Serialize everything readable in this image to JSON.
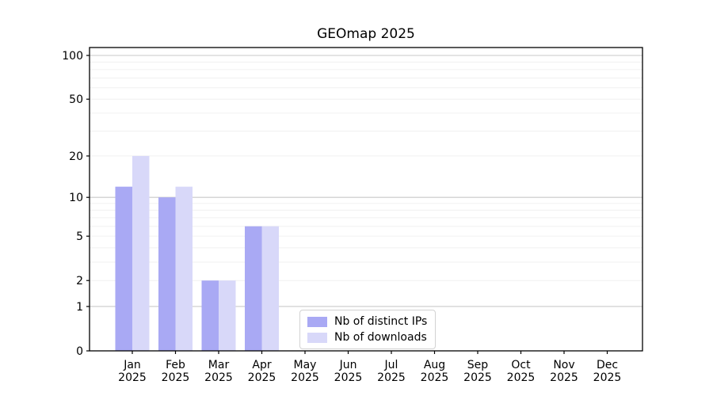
{
  "chart_data": {
    "type": "bar",
    "title": "GEOmap 2025",
    "categories": [
      "Jan 2025",
      "Feb 2025",
      "Mar 2025",
      "Apr 2025",
      "May 2025",
      "Jun 2025",
      "Jul 2025",
      "Aug 2025",
      "Sep 2025",
      "Oct 2025",
      "Nov 2025",
      "Dec 2025"
    ],
    "series": [
      {
        "name": "Nb of distinct IPs",
        "color": "#a9a9f4",
        "values": [
          12,
          10,
          2,
          6,
          0,
          0,
          0,
          0,
          0,
          0,
          0,
          0
        ]
      },
      {
        "name": "Nb of downloads",
        "color": "#d8d8f9",
        "values": [
          20,
          12,
          2,
          6,
          0,
          0,
          0,
          0,
          0,
          0,
          0,
          0
        ]
      }
    ],
    "xlabel": "",
    "ylabel": "",
    "yscale": "log1p",
    "ylim": [
      0,
      113.3
    ],
    "yticks": [
      100,
      50,
      20,
      10,
      5,
      2,
      1,
      0
    ],
    "grid": {
      "axis": "y",
      "major_values": [
        1,
        10,
        100
      ],
      "minor_values": [
        2,
        3,
        4,
        5,
        6,
        7,
        8,
        9,
        20,
        30,
        40,
        50,
        60,
        70,
        80,
        90
      ],
      "major_color": "#c9c9c9",
      "minor_color": "#f0f0f0"
    },
    "legend": {
      "location": "inside lower center",
      "frame": true
    }
  }
}
